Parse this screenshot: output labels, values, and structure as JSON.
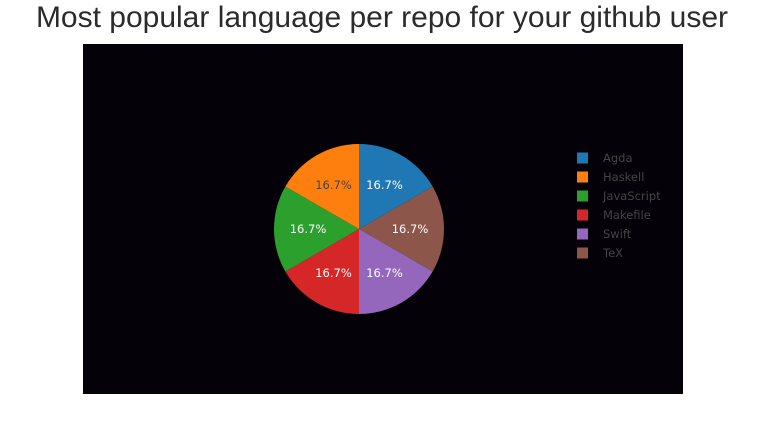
{
  "title": "Most popular language per repo for your github user",
  "colors": {
    "plot_background": "#050108",
    "page_background": "#ffffff",
    "legend_text": "#444444",
    "slice_border": "#050108"
  },
  "chart_data": {
    "type": "pie",
    "title": "Most popular language per repo for your github user",
    "direction": "clockwise",
    "start": "12 o'clock",
    "legend_position": "right",
    "slices": [
      {
        "label": "Agda",
        "value": 1,
        "percent_label": "16.7%",
        "color": "#1f77b4",
        "label_color": "#ffffff"
      },
      {
        "label": "TeX",
        "value": 1,
        "percent_label": "16.7%",
        "color": "#8c564b",
        "label_color": "#ffffff"
      },
      {
        "label": "Swift",
        "value": 1,
        "percent_label": "16.7%",
        "color": "#9467bd",
        "label_color": "#ffffff"
      },
      {
        "label": "Makefile",
        "value": 1,
        "percent_label": "16.7%",
        "color": "#d62728",
        "label_color": "#ffffff"
      },
      {
        "label": "JavaScript",
        "value": 1,
        "percent_label": "16.7%",
        "color": "#2ca02c",
        "label_color": "#ffffff"
      },
      {
        "label": "Haskell",
        "value": 1,
        "percent_label": "16.7%",
        "color": "#ff7f0e",
        "label_color": "#444444"
      }
    ],
    "legend": [
      "Agda",
      "Haskell",
      "JavaScript",
      "Makefile",
      "Swift",
      "TeX"
    ]
  }
}
